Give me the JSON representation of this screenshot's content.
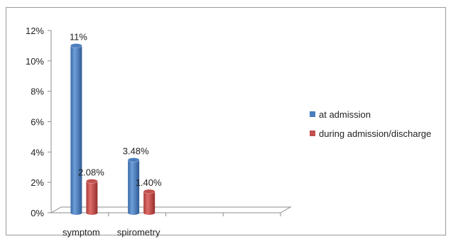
{
  "chart_data": {
    "type": "bar",
    "title": "",
    "xlabel": "",
    "ylabel": "",
    "categories": [
      "symptom",
      "spirometry"
    ],
    "series": [
      {
        "name": "at admission",
        "values": [
          11,
          3.48
        ],
        "labels": [
          "11%",
          "3.48%"
        ],
        "color": "#4a7ebf"
      },
      {
        "name": "during admission/discharge",
        "values": [
          2.08,
          1.4
        ],
        "labels": [
          "2.08%",
          "1.40%"
        ],
        "color": "#c0504d"
      }
    ],
    "ylim": [
      0,
      12
    ],
    "yticks": [
      "0%",
      "2%",
      "4%",
      "6%",
      "8%",
      "10%",
      "12%"
    ],
    "legend_position": "right",
    "style": "3d-cylinder"
  }
}
